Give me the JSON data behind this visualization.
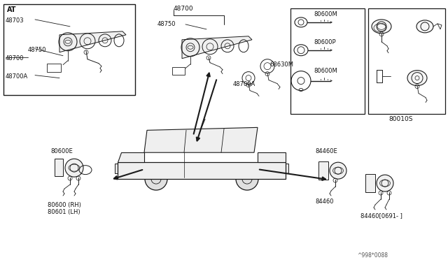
{
  "bg_color": "#ffffff",
  "line_color": "#1a1a1a",
  "text_color": "#111111",
  "figsize": [
    6.4,
    3.72
  ],
  "dpi": 100,
  "labels": {
    "AT": "AT",
    "48700_top": "48700",
    "48750_inset": "48750",
    "48703_inset": "48703",
    "48700_inset": "48700",
    "48700A_inset": "48700A",
    "48750_center": "48750",
    "48700A_center": "48700A",
    "68630M": "68630M",
    "80600M_1": "80600M",
    "80600P": "80600P",
    "80600M_2": "80600M",
    "80010S": "80010S",
    "80600E": "80600E",
    "80600RH": "80600 (RH)",
    "80601LH": "80601 (LH)",
    "84460E": "84460E",
    "84460": "84460",
    "84460_0691": "84460[0691- ]",
    "watermark": "^998*0088"
  }
}
